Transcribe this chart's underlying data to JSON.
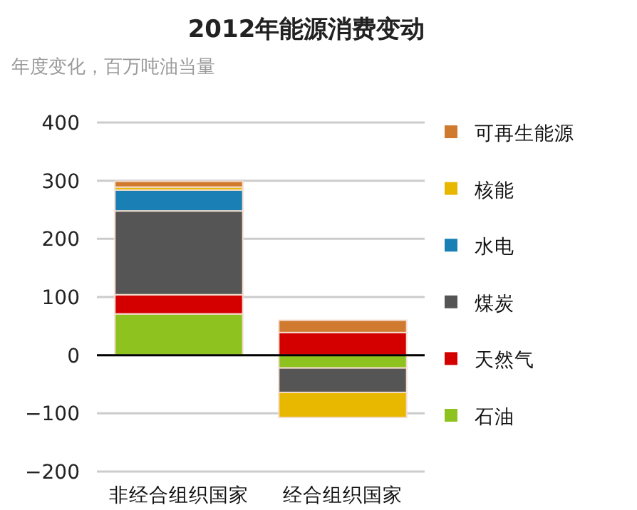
{
  "chart_data": {
    "type": "bar",
    "stacked": true,
    "title": "2012年能源消费变动",
    "subtitle": "年度变化，百万吨油当量",
    "categories": [
      "非经合组织国家",
      "经合组织国家"
    ],
    "series": [
      {
        "name": "石油",
        "color": "#8dc21f",
        "values": [
          71,
          -22
        ]
      },
      {
        "name": "天然气",
        "color": "#d40000",
        "values": [
          33,
          39
        ]
      },
      {
        "name": "煤炭",
        "color": "#555555",
        "values": [
          144,
          -42
        ]
      },
      {
        "name": "水电",
        "color": "#1a7fb5",
        "values": [
          36,
          null
        ]
      },
      {
        "name": "核能",
        "color": "#e8b800",
        "values": [
          5,
          -43
        ]
      },
      {
        "name": "可再生能源",
        "color": "#d07a30",
        "values": [
          10,
          21
        ]
      }
    ],
    "ylim": [
      -200,
      400
    ],
    "yticks": [
      {
        "value": -200,
        "label": "−200"
      },
      {
        "value": -100,
        "label": "−100"
      },
      0,
      100,
      200,
      300,
      400
    ],
    "grid": "y",
    "legend": "right"
  }
}
